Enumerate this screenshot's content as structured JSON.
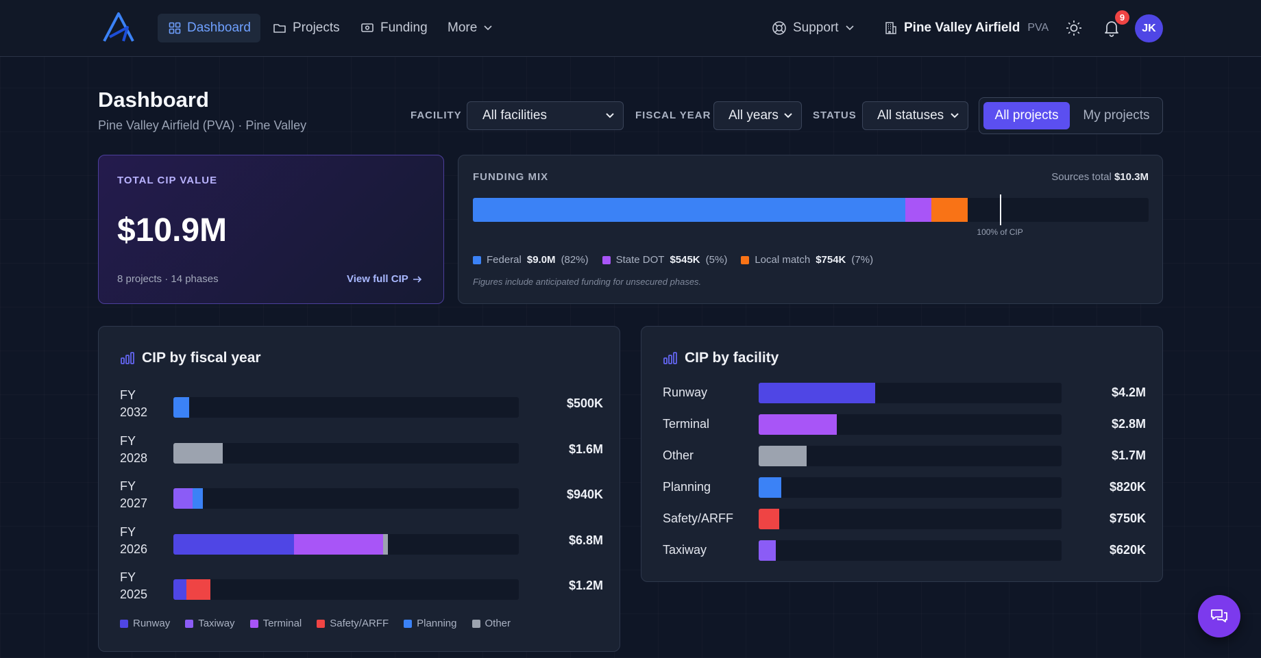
{
  "nav": {
    "items": [
      {
        "label": "Dashboard"
      },
      {
        "label": "Projects"
      },
      {
        "label": "Funding"
      },
      {
        "label": "More"
      }
    ],
    "support_label": "Support",
    "facility_name": "Pine Valley Airfield",
    "facility_code": "PVA",
    "notification_count": "9",
    "avatar_initials": "JK"
  },
  "header": {
    "title": "Dashboard",
    "subtitle": "Pine Valley Airfield (PVA) · Pine Valley"
  },
  "filters": {
    "facility_label": "FACILITY",
    "facility_value": "All facilities",
    "year_label": "FISCAL YEAR",
    "year_value": "All years",
    "status_label": "STATUS",
    "status_value": "All statuses",
    "scope_all": "All projects",
    "scope_mine": "My projects"
  },
  "total_card": {
    "label": "TOTAL CIP VALUE",
    "value": "$10.9M",
    "meta": "8 projects · 14 phases",
    "link": "View full CIP"
  },
  "funding_mix": {
    "label": "FUNDING MIX",
    "total_label": "Sources total",
    "total_value": "$10.3M",
    "marker_label": "100% of CIP",
    "marker_percent": 78,
    "note": "Figures include anticipated funding for unsecured phases.",
    "sources": [
      {
        "name": "Federal",
        "amount": "$9.0M",
        "pct_label": "(82%)",
        "share": 64,
        "color": "#3b82f6"
      },
      {
        "name": "State DOT",
        "amount": "$545K",
        "pct_label": "(5%)",
        "share": 3.9,
        "color": "#a855f7"
      },
      {
        "name": "Local match",
        "amount": "$754K",
        "pct_label": "(7%)",
        "share": 5.3,
        "color": "#f97316"
      }
    ]
  },
  "fy_chart": {
    "title": "CIP by fiscal year",
    "colors": {
      "Runway": "#4f46e5",
      "Taxiway": "#8b5cf6",
      "Terminal": "#a855f7",
      "Safety/ARFF": "#ef4444",
      "Planning": "#3b82f6",
      "Other": "#9ca3af"
    },
    "legend": [
      "Runway",
      "Taxiway",
      "Terminal",
      "Safety/ARFF",
      "Planning",
      "Other"
    ],
    "rows": [
      {
        "line1": "FY",
        "line2": "2032",
        "value": "$500K",
        "segments": [
          {
            "cat": "Planning",
            "pct": 4.5
          }
        ]
      },
      {
        "line1": "FY",
        "line2": "2028",
        "value": "$1.6M",
        "segments": [
          {
            "cat": "Other",
            "pct": 14.3
          }
        ]
      },
      {
        "line1": "FY",
        "line2": "2027",
        "value": "$940K",
        "segments": [
          {
            "cat": "Taxiway",
            "pct": 5.6
          },
          {
            "cat": "Planning",
            "pct": 3
          }
        ]
      },
      {
        "line1": "FY",
        "line2": "2026",
        "value": "$6.8M",
        "segments": [
          {
            "cat": "Runway",
            "pct": 34.9
          },
          {
            "cat": "Terminal",
            "pct": 25.8
          },
          {
            "cat": "Other",
            "pct": 1.5
          }
        ]
      },
      {
        "line1": "FY",
        "line2": "2025",
        "value": "$1.2M",
        "segments": [
          {
            "cat": "Runway",
            "pct": 3.7
          },
          {
            "cat": "Safety/ARFF",
            "pct": 7.1
          }
        ]
      }
    ]
  },
  "fac_chart": {
    "title": "CIP by facility",
    "rows": [
      {
        "name": "Runway",
        "value": "$4.2M",
        "pct": 38.5,
        "color": "#4f46e5"
      },
      {
        "name": "Terminal",
        "value": "$2.8M",
        "pct": 25.7,
        "color": "#a855f7"
      },
      {
        "name": "Other",
        "value": "$1.7M",
        "pct": 15.8,
        "color": "#9ca3af"
      },
      {
        "name": "Planning",
        "value": "$820K",
        "pct": 7.5,
        "color": "#3b82f6"
      },
      {
        "name": "Safety/ARFF",
        "value": "$750K",
        "pct": 6.9,
        "color": "#ef4444"
      },
      {
        "name": "Taxiway",
        "value": "$620K",
        "pct": 5.7,
        "color": "#8b5cf6"
      }
    ]
  }
}
